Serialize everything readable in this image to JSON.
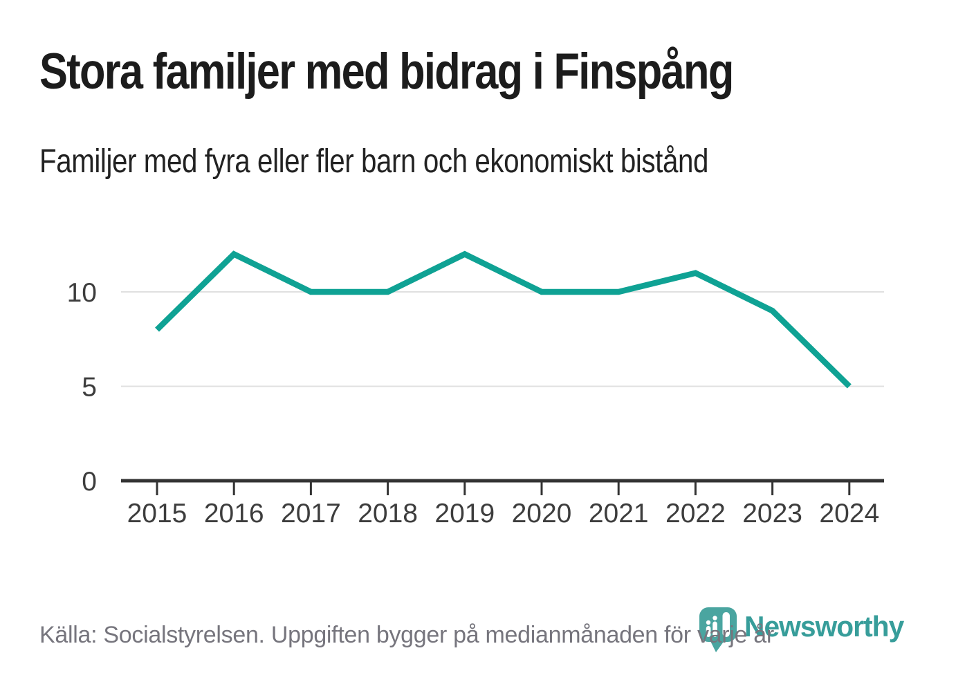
{
  "header": {
    "title": "Stora familjer med bidrag i Finspång",
    "subtitle": "Familjer med fyra eller fler barn och ekonomiskt bistånd"
  },
  "footer": {
    "source": "Källa: Socialstyrelsen. Uppgiften bygger på medianmånaden för varje år",
    "brand": "Newsworthy"
  },
  "colors": {
    "line_teal": "#0fa294",
    "logo_text_teal": "#379d9a",
    "logo_icon_teal": "#4aa5a0",
    "gridline_grey": "#e0e0e0",
    "axis_dark": "#333333",
    "axis_text": "#3d3d3d",
    "muted_text": "#76757d",
    "title_text": "#1c1c1c"
  },
  "chart_data": {
    "type": "line",
    "title": "Stora familjer med bidrag i Finspång",
    "subtitle": "Familjer med fyra eller fler barn och ekonomiskt bistånd",
    "categories": [
      "2015",
      "2016",
      "2017",
      "2018",
      "2019",
      "2020",
      "2021",
      "2022",
      "2023",
      "2024"
    ],
    "values": [
      8,
      12,
      10,
      10,
      12,
      10,
      10,
      11,
      9,
      5
    ],
    "series": [
      {
        "name": "Familjer med fyra eller fler barn och ekonomiskt bistånd",
        "values": [
          8,
          12,
          10,
          10,
          12,
          10,
          10,
          11,
          9,
          5
        ]
      }
    ],
    "xlabel": "",
    "ylabel": "",
    "yticks": [
      0,
      5,
      10
    ],
    "ylim": [
      0,
      13.5
    ],
    "grid": true,
    "legend_position": "none",
    "line_color": "#0fa294"
  }
}
